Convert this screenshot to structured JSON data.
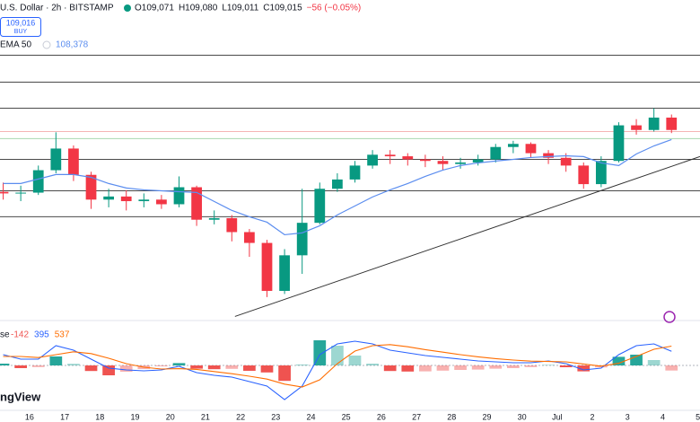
{
  "chart_data": [
    {
      "type": "candlestick",
      "title": "U.S. Dollar · 2h · BITSTAMP",
      "legend_values": [
        "O109,071",
        "H109,080",
        "L109,011",
        "C109,015",
        "−56 (−0.05%)"
      ],
      "buy_box": [
        "109,016",
        "BUY"
      ],
      "x": [
        15.25,
        15.75,
        16.25,
        16.75,
        17.25,
        17.75,
        18.25,
        18.75,
        19.25,
        19.75,
        20.25,
        20.75,
        21.25,
        21.75,
        22.25,
        22.75,
        23.25,
        23.75,
        24.25,
        24.75,
        25.25,
        25.75,
        26.25,
        26.75,
        27.25,
        27.75,
        28.25,
        28.75,
        29.25,
        29.75,
        30.25,
        30.75,
        31.25,
        31.75,
        32.25,
        32.75,
        33.25,
        33.75,
        34.25
      ],
      "open": [
        105000,
        104900,
        104950,
        106400,
        107800,
        106100,
        104500,
        104700,
        104400,
        104500,
        104200,
        105300,
        103200,
        103300,
        102400,
        101700,
        98600,
        100900,
        103000,
        105200,
        105800,
        106700,
        107400,
        107300,
        107100,
        107000,
        106800,
        106900,
        107100,
        107900,
        108100,
        107500,
        107200,
        106700,
        105500,
        107000,
        109300,
        109000,
        109800
      ],
      "high": [
        105600,
        105400,
        106700,
        108850,
        108000,
        106300,
        105200,
        105100,
        104900,
        104800,
        106000,
        105400,
        103800,
        103500,
        102600,
        101900,
        101300,
        105200,
        105600,
        106200,
        107000,
        107700,
        107700,
        107500,
        107400,
        107300,
        107200,
        107400,
        108100,
        108300,
        108200,
        107700,
        107500,
        106900,
        107300,
        109500,
        109700,
        110400,
        110000
      ],
      "low": [
        104500,
        104400,
        104800,
        106200,
        105700,
        103900,
        104000,
        103800,
        104000,
        103900,
        104000,
        102800,
        102900,
        101800,
        100800,
        98200,
        98400,
        99700,
        102900,
        105000,
        105600,
        106500,
        106800,
        106700,
        106600,
        106400,
        106500,
        106700,
        106900,
        107500,
        107200,
        106800,
        106300,
        105200,
        105300,
        106900,
        108700,
        108900,
        108800
      ],
      "close": [
        104900,
        104950,
        106400,
        107800,
        106100,
        104500,
        104700,
        104400,
        104500,
        104200,
        105300,
        103200,
        103300,
        102400,
        101700,
        98600,
        100900,
        103000,
        105200,
        105800,
        106700,
        107400,
        107300,
        107100,
        107000,
        106800,
        106900,
        107100,
        107900,
        108100,
        107500,
        107200,
        106700,
        105500,
        107000,
        109300,
        109000,
        109800,
        109000
      ],
      "up_color": "#089981",
      "down_color": "#f23645",
      "ema": {
        "name": "EMA 50",
        "color": "#5b8def",
        "value_label": "108,378",
        "values": [
          105540,
          105540,
          105830,
          106120,
          106120,
          105940,
          105540,
          105250,
          105130,
          105070,
          105010,
          104960,
          104380,
          103800,
          103390,
          103040,
          102230,
          102350,
          102810,
          103510,
          104090,
          104670,
          105130,
          105540,
          106000,
          106410,
          106700,
          106870,
          106990,
          107100,
          107220,
          107280,
          107330,
          107280,
          106870,
          106700,
          107450,
          107970,
          108378
        ]
      },
      "levels": [
        113830,
        112090,
        110410,
        107100,
        105070,
        103390
      ],
      "level_color": "#4a4a4a",
      "price_lines": [
        {
          "value": 108900,
          "color": "#f5b5b5"
        },
        {
          "value": 108440,
          "color": "#a8d8b0"
        }
      ],
      "trendline": {
        "x": [
          21.84,
          35.06
        ],
        "y": [
          96950,
          107280
        ],
        "color": "#333333"
      },
      "xlim": [
        15.16,
        35.06
      ],
      "ylim": [
        96800,
        117400
      ],
      "xticks": [
        16,
        17,
        18,
        19,
        20,
        21,
        22,
        23,
        24,
        25,
        26,
        27,
        28,
        29,
        30,
        {
          "value": 31,
          "label": "Jul"
        },
        {
          "value": 32,
          "label": "2"
        },
        {
          "value": 33,
          "label": "3"
        },
        {
          "value": 34,
          "label": "4"
        },
        {
          "value": 35,
          "label": "5"
        }
      ],
      "watermark": "ngView"
    },
    {
      "type": "macd",
      "legend_label": "se",
      "ylim": [
        -1200,
        1175
      ],
      "histogram": {
        "value_label": "-142",
        "up_color": "#26a69a",
        "down_color": "#ef5350",
        "values": [
          50,
          -75,
          -45,
          250,
          45,
          -155,
          -275,
          -175,
          -100,
          -25,
          65,
          -90,
          -105,
          -95,
          -150,
          -195,
          -430,
          25,
          700,
          550,
          275,
          50,
          -155,
          -170,
          -165,
          -145,
          -125,
          -115,
          -90,
          -75,
          -45,
          15,
          -50,
          -165,
          -55,
          240,
          300,
          150,
          -142
        ]
      },
      "series": [
        {
          "value_label": "395",
          "color": "#2962ff",
          "values": [
            300,
            175,
            175,
            550,
            425,
            175,
            -75,
            -125,
            -150,
            -125,
            -25,
            -200,
            -275,
            -325,
            -450,
            -575,
            -950,
            -575,
            300,
            600,
            675,
            600,
            425,
            350,
            275,
            225,
            175,
            125,
            100,
            75,
            75,
            125,
            50,
            -125,
            -75,
            300,
            550,
            600,
            395
          ]
        },
        {
          "value_label": "537",
          "color": "#ff6d00",
          "values": [
            250,
            250,
            220,
            300,
            380,
            330,
            200,
            50,
            -50,
            -100,
            -90,
            -110,
            -170,
            -230,
            -300,
            -380,
            -520,
            -600,
            -400,
            50,
            400,
            550,
            580,
            520,
            440,
            370,
            300,
            240,
            190,
            150,
            120,
            110,
            100,
            40,
            -20,
            60,
            250,
            450,
            537
          ]
        }
      ]
    }
  ]
}
